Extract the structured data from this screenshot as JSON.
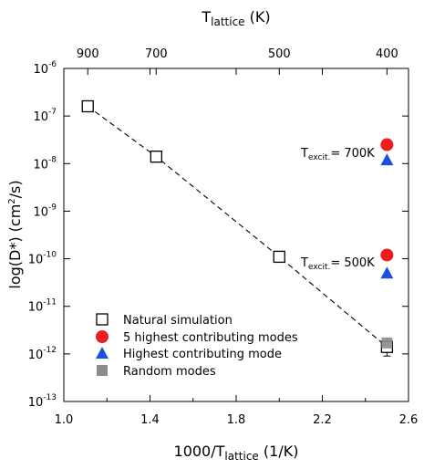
{
  "chart_data": {
    "type": "scatter",
    "x_axis": {
      "label_main": "1000/T",
      "label_sub": "lattice",
      "label_unit": " (1/K)",
      "range": [
        1.0,
        2.6
      ],
      "ticks": [
        1.0,
        1.4,
        1.8,
        2.2,
        2.6
      ],
      "tick_labels": [
        "1.0",
        "1.4",
        "1.8",
        "2.2",
        "2.6"
      ]
    },
    "top_axis": {
      "label_main": "T",
      "label_sub": "lattice",
      "label_unit": " (K)",
      "ticks_K": [
        900,
        700,
        500,
        400
      ],
      "tick_labels": [
        "900",
        "700",
        "500",
        "400"
      ]
    },
    "y_axis": {
      "label_main": "log(D*) (cm",
      "label_sup": "2",
      "label_end": "/s)",
      "scale": "log",
      "range": [
        -13,
        -6
      ],
      "tick_base": "10",
      "tick_exponents": [
        "-6",
        "-7",
        "-8",
        "-9",
        "-10",
        "-11",
        "-12",
        "-13"
      ]
    },
    "grid": false,
    "legend_position": "bottom-left",
    "series": [
      {
        "name": "Natural simulation",
        "marker": "open-square",
        "color": "#000000",
        "points": [
          {
            "x": 1.111,
            "y": 1.6e-07
          },
          {
            "x": 1.429,
            "y": 1.4e-08
          },
          {
            "x": 2.0,
            "y": 1.1e-10
          },
          {
            "x": 2.5,
            "y": 1.4e-12
          }
        ],
        "fit_line": "dashed"
      },
      {
        "name": "5 highest contributing modes",
        "marker": "filled-circle",
        "color": "#ee1c1c",
        "points": [
          {
            "x": 2.5,
            "y": 2.5e-08
          },
          {
            "x": 2.5,
            "y": 1.2e-10
          }
        ]
      },
      {
        "name": "Highest contributing mode",
        "marker": "filled-triangle",
        "color": "#1f4fe0",
        "points": [
          {
            "x": 2.5,
            "y": 1.2e-08
          },
          {
            "x": 2.5,
            "y": 5e-11
          }
        ]
      },
      {
        "name": "Random modes",
        "marker": "filled-square",
        "color": "#8c8c8c",
        "points": [
          {
            "x": 2.5,
            "y": 1.7e-12
          }
        ]
      }
    ],
    "annotations": [
      {
        "main": "T",
        "sub": "excit.",
        "rest": "= 700K"
      },
      {
        "main": "T",
        "sub": "excit.",
        "rest": "= 500K"
      }
    ]
  }
}
